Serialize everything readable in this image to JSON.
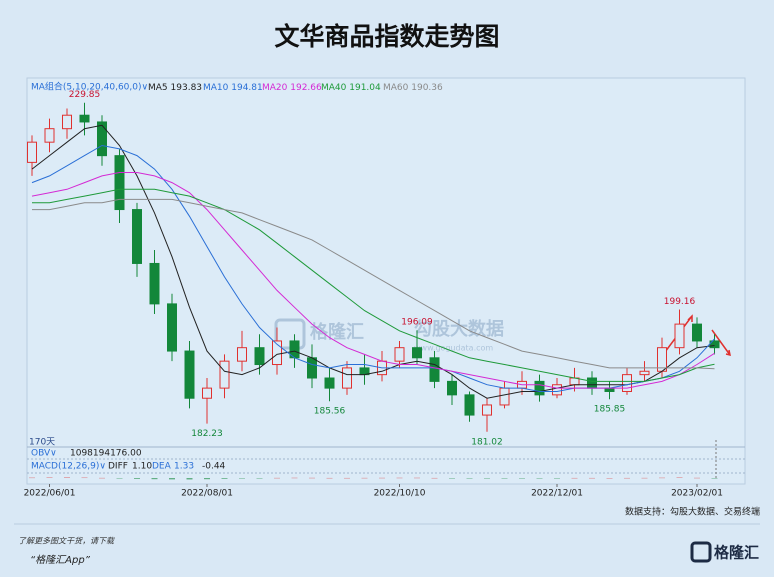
{
  "chart_data": {
    "type": "candlestick",
    "title": "文华商品指数走势图",
    "indicator_label": "MA组合(5,10,20,40,60,0)∨",
    "span_label": "170天",
    "categories": [
      null,
      "2022/06/01",
      null,
      null,
      null,
      null,
      null,
      null,
      null,
      null,
      "2022/08/01",
      null,
      null,
      null,
      null,
      null,
      null,
      null,
      null,
      null,
      null,
      "2022/10/10",
      null,
      null,
      null,
      null,
      null,
      null,
      null,
      null,
      "2022/12/01",
      null,
      null,
      null,
      null,
      null,
      null,
      null,
      "2023/02/01",
      null
    ],
    "open": [
      221,
      224,
      226,
      228,
      227,
      222,
      214,
      206,
      200,
      193,
      186,
      187.5,
      191.5,
      193.5,
      191,
      194.5,
      192,
      189,
      187.5,
      190.5,
      189.5,
      191.5,
      193.5,
      192,
      188.5,
      186.5,
      183.5,
      185,
      187.5,
      188.5,
      186.5,
      188,
      189,
      187.5,
      187,
      189.5,
      190,
      193.5,
      197,
      194.5
    ],
    "high": [
      225,
      227.5,
      229,
      229.85,
      228,
      223,
      215,
      208,
      201.5,
      194.5,
      189,
      192.5,
      196,
      195.5,
      196.5,
      195.5,
      194,
      190.5,
      191.5,
      192.5,
      193,
      194.5,
      196.09,
      193,
      189.5,
      187,
      186,
      188.5,
      190,
      189.5,
      189,
      190.5,
      190,
      188.5,
      190.5,
      191.5,
      195,
      199.16,
      198,
      195.5
    ],
    "low": [
      219,
      222.5,
      224.5,
      225,
      220.5,
      212,
      204,
      198.5,
      191.5,
      184.5,
      182.23,
      186,
      190,
      189.5,
      189.5,
      190.5,
      187.5,
      185.56,
      186.5,
      188,
      188.5,
      190.5,
      191,
      187.5,
      185,
      182.5,
      181.02,
      184.5,
      186.5,
      185.5,
      186,
      187,
      186.5,
      185.85,
      186.5,
      188.5,
      189,
      192.5,
      193.5,
      192.5
    ],
    "close": [
      224,
      226,
      228,
      227,
      222,
      214,
      206,
      200,
      193,
      186,
      187.5,
      191.5,
      193.5,
      191,
      194.5,
      192,
      189,
      187.5,
      190.5,
      189.5,
      191.5,
      193.5,
      192,
      188.5,
      186.5,
      183.5,
      185,
      187.5,
      188.5,
      186.5,
      188,
      189,
      187.5,
      187,
      189.5,
      190,
      193.5,
      197,
      194.5,
      193.5
    ],
    "up_color": "#e0312f",
    "down_color": "#13873a",
    "series": [
      {
        "name": "MA5",
        "color": "#222222",
        "values": [
          220,
          222,
          224,
          226,
          226.5,
          223.5,
          219,
          213.5,
          207,
          199.5,
          193,
          190,
          189.5,
          190.5,
          192.5,
          193,
          192,
          190.5,
          189.5,
          189.5,
          190,
          191,
          191.5,
          191,
          189.5,
          187.5,
          186,
          186.5,
          187,
          187,
          187.5,
          188,
          188,
          188,
          188,
          188.5,
          190,
          192,
          193.5,
          193.83
        ]
      },
      {
        "name": "MA10",
        "color": "#2a6fd6",
        "values": [
          218,
          219,
          220.5,
          222,
          223.5,
          223,
          222,
          220,
          217,
          213,
          208.5,
          204,
          200,
          196.5,
          194,
          192,
          191,
          190.5,
          191,
          191,
          190.5,
          190.5,
          190.5,
          190.5,
          190,
          189,
          188,
          187.5,
          187.5,
          187,
          187,
          187.5,
          187.5,
          187.5,
          188,
          188.5,
          189,
          190,
          192,
          194.81
        ]
      },
      {
        "name": "MA20",
        "color": "#d42ad4",
        "values": [
          216,
          216.5,
          217,
          218,
          219,
          219.5,
          219.5,
          219,
          218,
          216.5,
          214,
          211,
          208,
          205,
          202,
          199.5,
          197,
          195,
          193.5,
          192.5,
          191.5,
          191,
          191,
          190.5,
          190,
          189.5,
          189,
          188.5,
          188,
          188,
          187.5,
          187.5,
          187.5,
          187.5,
          187.5,
          188,
          188.5,
          189.5,
          191,
          192.66
        ]
      },
      {
        "name": "MA40",
        "color": "#1f9a3a",
        "values": [
          215,
          215,
          215.5,
          216,
          216.5,
          217,
          217,
          217,
          216.5,
          216,
          215,
          214,
          212.5,
          211,
          209,
          207,
          205,
          203,
          201,
          199,
          197.5,
          196,
          195,
          194,
          193,
          192,
          191.5,
          191,
          190.5,
          190,
          189.5,
          189,
          188.5,
          188.5,
          188.5,
          188.5,
          189,
          189.5,
          190.5,
          191.04
        ]
      },
      {
        "name": "MA60",
        "color": "#8a8a8a",
        "values": [
          214,
          214,
          214.5,
          215,
          215,
          215.5,
          215.5,
          215.5,
          215.5,
          215,
          214.5,
          214,
          213.5,
          212.5,
          211.5,
          210.5,
          209.5,
          208,
          206.5,
          205,
          203.5,
          202,
          200.5,
          199,
          197.5,
          196,
          195,
          194,
          193,
          192.5,
          192,
          191.5,
          191,
          190.5,
          190.5,
          190.5,
          190.5,
          190.5,
          190.5,
          190.36
        ]
      }
    ],
    "ylim": [
      179.8,
      231
    ],
    "obv": {
      "name": "OBV∨",
      "value": {
        "value": 1098194176,
        "label": "1098194176.00"
      }
    },
    "macd": {
      "name": "MACD(12,26,9)∨",
      "diff": {
        "name": "DIFF",
        "value": {
          "value": 1.1,
          "label": "1.10"
        }
      },
      "dea": {
        "name": "DEA",
        "value": 1.33
      },
      "values": [
        0.6,
        0.8,
        0.9,
        0.7,
        0.2,
        -0.6,
        -1.3,
        -1.8,
        -2.1,
        -2.2,
        -1.8,
        -1.2,
        -0.6,
        -0.2,
        0.2,
        0.4,
        0.3,
        0.1,
        0.1,
        0.2,
        0.3,
        0.4,
        0.4,
        0.1,
        -0.3,
        -0.6,
        -0.7,
        -0.5,
        -0.3,
        -0.2,
        -0.1,
        0.1,
        0.1,
        0,
        0.1,
        0.2,
        0.5,
        0.8,
        0.3,
        -0.44
      ],
      "ylim": [
        -6,
        6
      ]
    },
    "watermark": [
      "格隆汇",
      "勾股大数据",
      "www.gogudata.com"
    ],
    "source": "数据支持：勾股大数据、交易终端",
    "promo": [
      "了解更多图文干货，请下载",
      "“格隆汇App”"
    ],
    "logo": "格隆汇"
  }
}
